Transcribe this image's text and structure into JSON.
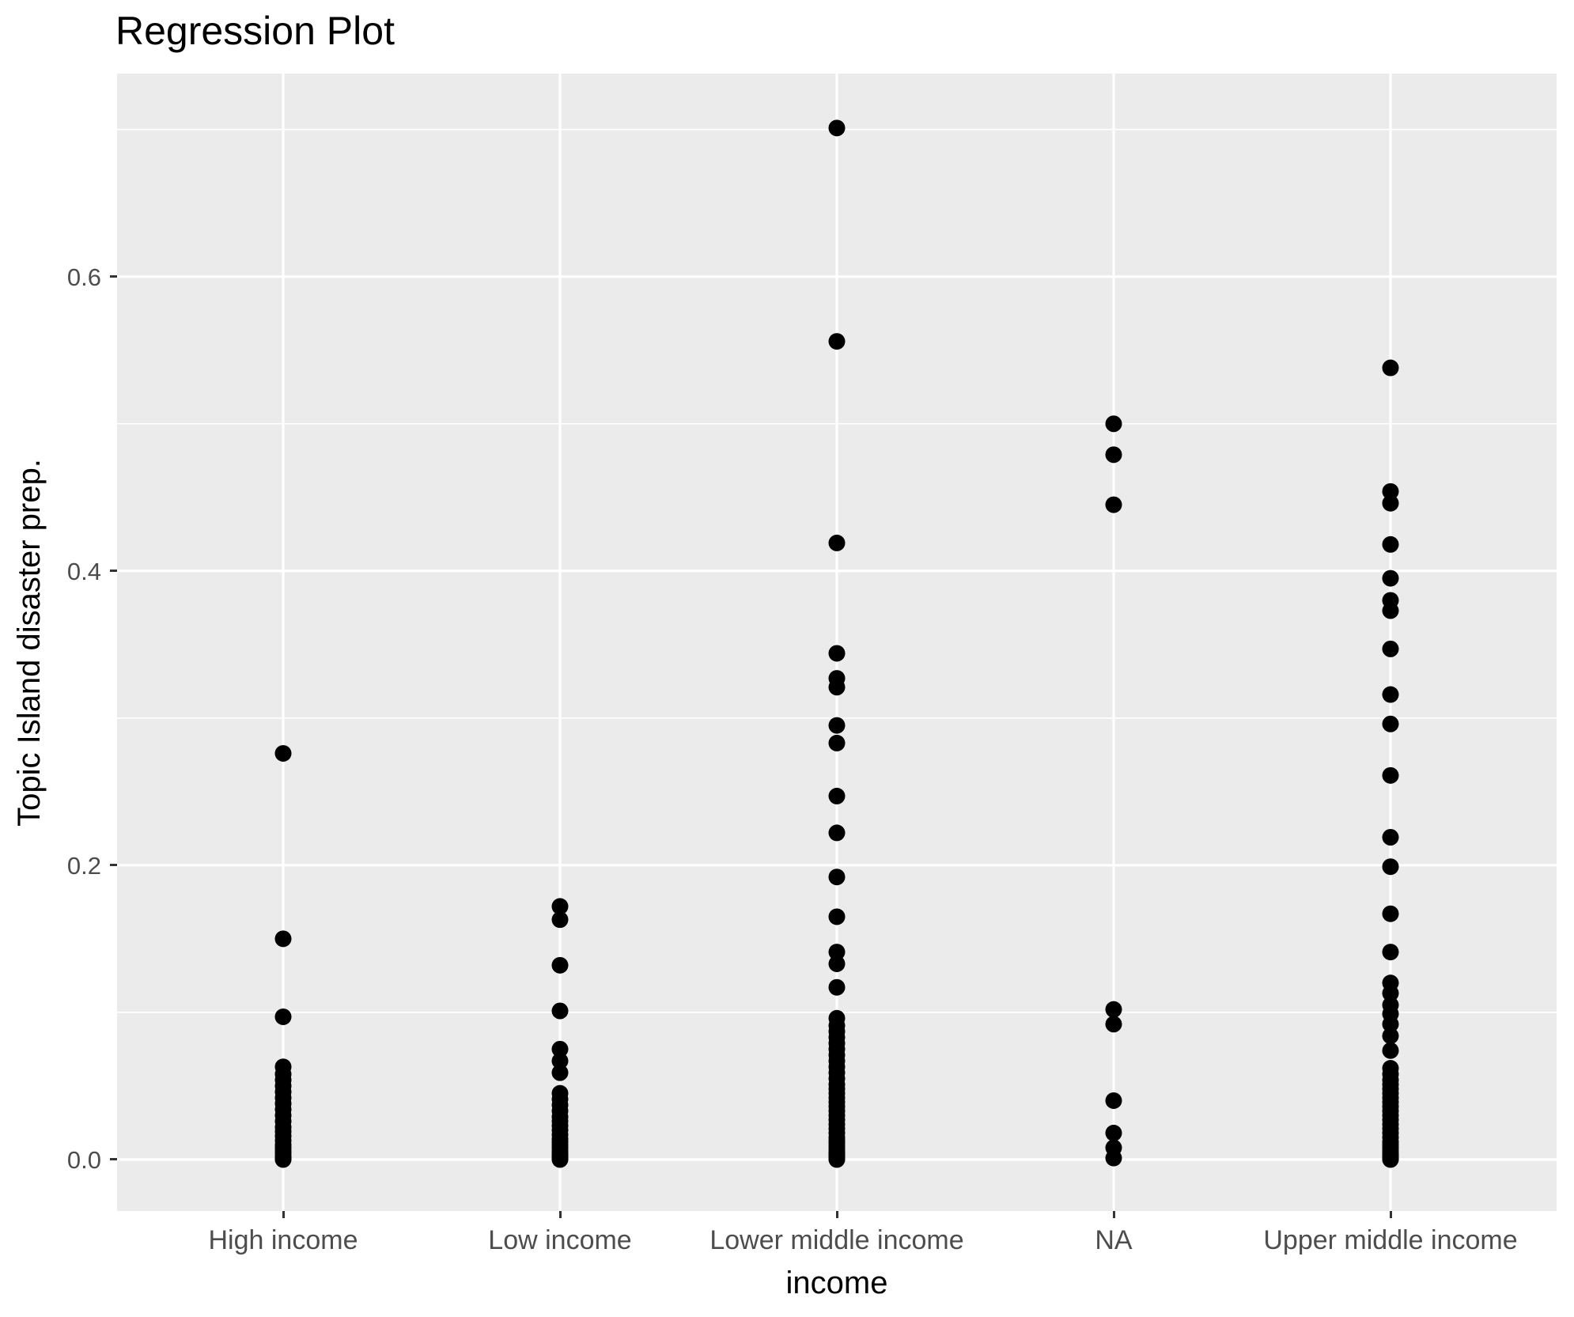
{
  "title": "Regression Plot",
  "style": {
    "panel_bg": "#EBEBEB",
    "grid_color": "#FFFFFF",
    "point_color": "#000000",
    "tick_label_color": "#4D4D4D",
    "tick_mark_color": "#333333",
    "title_color": "#000000"
  },
  "chart_data": {
    "type": "scatter",
    "title": "Regression Plot",
    "xlabel": "income",
    "ylabel": "Topic Island disaster prep.",
    "grid": true,
    "legend": false,
    "point_radius_px": 10.5,
    "categories": [
      "High income",
      "Low income",
      "Lower middle income",
      "NA",
      "Upper middle income"
    ],
    "ylim": [
      -0.035,
      0.738
    ],
    "yticks": [
      0.0,
      0.2,
      0.4,
      0.6
    ],
    "ytick_labels": [
      "0.0",
      "0.2",
      "0.4",
      "0.6"
    ],
    "yticks_minor": [
      0.1,
      0.3,
      0.5,
      0.7
    ],
    "series": [
      {
        "name": "High income",
        "values": [
          0.276,
          0.15,
          0.097,
          0.063,
          0.058,
          0.054,
          0.05,
          0.046,
          0.042,
          0.038,
          0.034,
          0.03,
          0.026,
          0.022,
          0.019,
          0.016,
          0.013,
          0.01,
          0.008,
          0.006,
          0.004,
          0.002,
          0.001,
          0.0
        ]
      },
      {
        "name": "Low income",
        "values": [
          0.172,
          0.163,
          0.132,
          0.101,
          0.075,
          0.067,
          0.059,
          0.045,
          0.041,
          0.037,
          0.033,
          0.029,
          0.026,
          0.023,
          0.02,
          0.017,
          0.014,
          0.012,
          0.01,
          0.008,
          0.006,
          0.004,
          0.003,
          0.002,
          0.001,
          0.0
        ]
      },
      {
        "name": "Lower middle income",
        "values": [
          0.701,
          0.556,
          0.419,
          0.344,
          0.327,
          0.321,
          0.295,
          0.283,
          0.247,
          0.222,
          0.192,
          0.165,
          0.141,
          0.133,
          0.117,
          0.096,
          0.091,
          0.087,
          0.083,
          0.079,
          0.075,
          0.071,
          0.067,
          0.063,
          0.059,
          0.055,
          0.051,
          0.048,
          0.045,
          0.042,
          0.039,
          0.036,
          0.033,
          0.03,
          0.027,
          0.024,
          0.021,
          0.018,
          0.015,
          0.013,
          0.011,
          0.009,
          0.007,
          0.005,
          0.004,
          0.003,
          0.002,
          0.001,
          0.0
        ]
      },
      {
        "name": "NA",
        "values": [
          0.5,
          0.479,
          0.445,
          0.102,
          0.092,
          0.04,
          0.018,
          0.008,
          0.001
        ]
      },
      {
        "name": "Upper middle income",
        "values": [
          0.538,
          0.454,
          0.446,
          0.418,
          0.395,
          0.38,
          0.373,
          0.347,
          0.316,
          0.296,
          0.261,
          0.219,
          0.199,
          0.167,
          0.141,
          0.12,
          0.113,
          0.105,
          0.099,
          0.092,
          0.084,
          0.074,
          0.062,
          0.058,
          0.054,
          0.051,
          0.048,
          0.045,
          0.042,
          0.039,
          0.036,
          0.033,
          0.03,
          0.027,
          0.024,
          0.021,
          0.018,
          0.015,
          0.012,
          0.01,
          0.008,
          0.006,
          0.004,
          0.003,
          0.002,
          0.001,
          0.0
        ]
      }
    ]
  }
}
